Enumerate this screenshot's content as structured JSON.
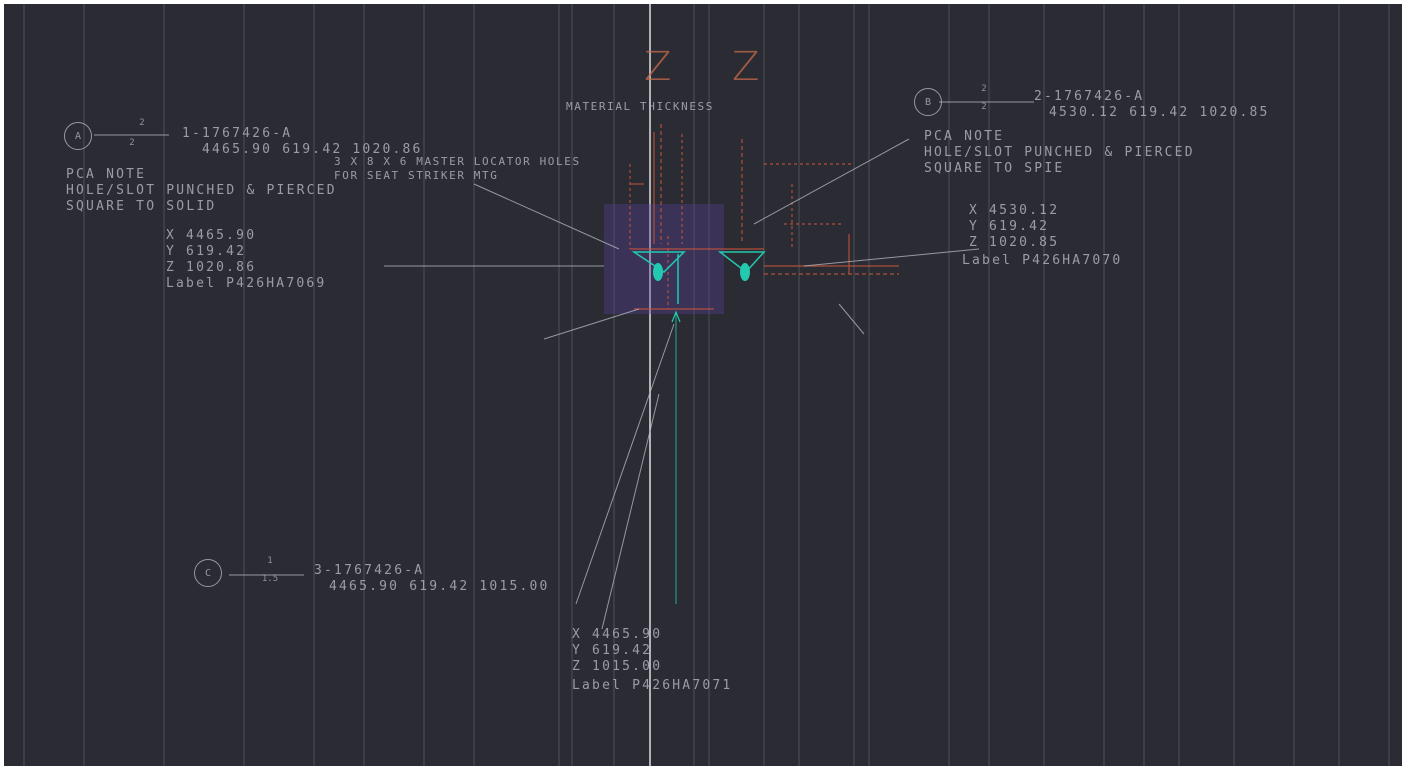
{
  "viewport": {
    "background": "#2b2c33",
    "line_color": "#b9bcc6",
    "accent_red": "#c8553d",
    "accent_cyan": "#23c9b0",
    "accent_purple": "#5a3f9a"
  },
  "header": {
    "z1": "Z",
    "z2": "Z",
    "material_thickness": "MATERIAL THICKNESS"
  },
  "callout_a": {
    "bubble": "A",
    "frac_top": "2",
    "frac_bottom": "2",
    "part": "1-1767426-A",
    "coords": "4465.90 619.42 1020.86",
    "locator_line1": "3 X 8 X 6 MASTER LOCATOR HOLES",
    "locator_line2": "FOR SEAT STRIKER MTG",
    "note1": "PCA NOTE",
    "note2": "HOLE/SLOT PUNCHED & PIERCED",
    "note3": "SQUARE TO SOLID",
    "x": "X 4465.90",
    "y": "Y 619.42",
    "z": "Z 1020.86",
    "label": "Label P426HA7069"
  },
  "callout_b": {
    "bubble": "B",
    "frac_top": "2",
    "frac_bottom": "2",
    "part": "2-1767426-A",
    "coords": "4530.12 619.42 1020.85",
    "note1": "PCA NOTE",
    "note2": "HOLE/SLOT PUNCHED & PIERCED",
    "note3": "SQUARE TO SPIE",
    "x": "X 4530.12",
    "y": "Y 619.42",
    "z": "Z 1020.85",
    "label": "Label P426HA7070"
  },
  "callout_c": {
    "bubble": "C",
    "frac_top": "1",
    "frac_bottom": "1.5",
    "part": "3-1767426-A",
    "coords": "4465.90 619.42 1015.00",
    "x": "X 4465.90",
    "y": "Y 619.42",
    "z": "Z 1015.00",
    "label": "Label P426HA7071"
  }
}
